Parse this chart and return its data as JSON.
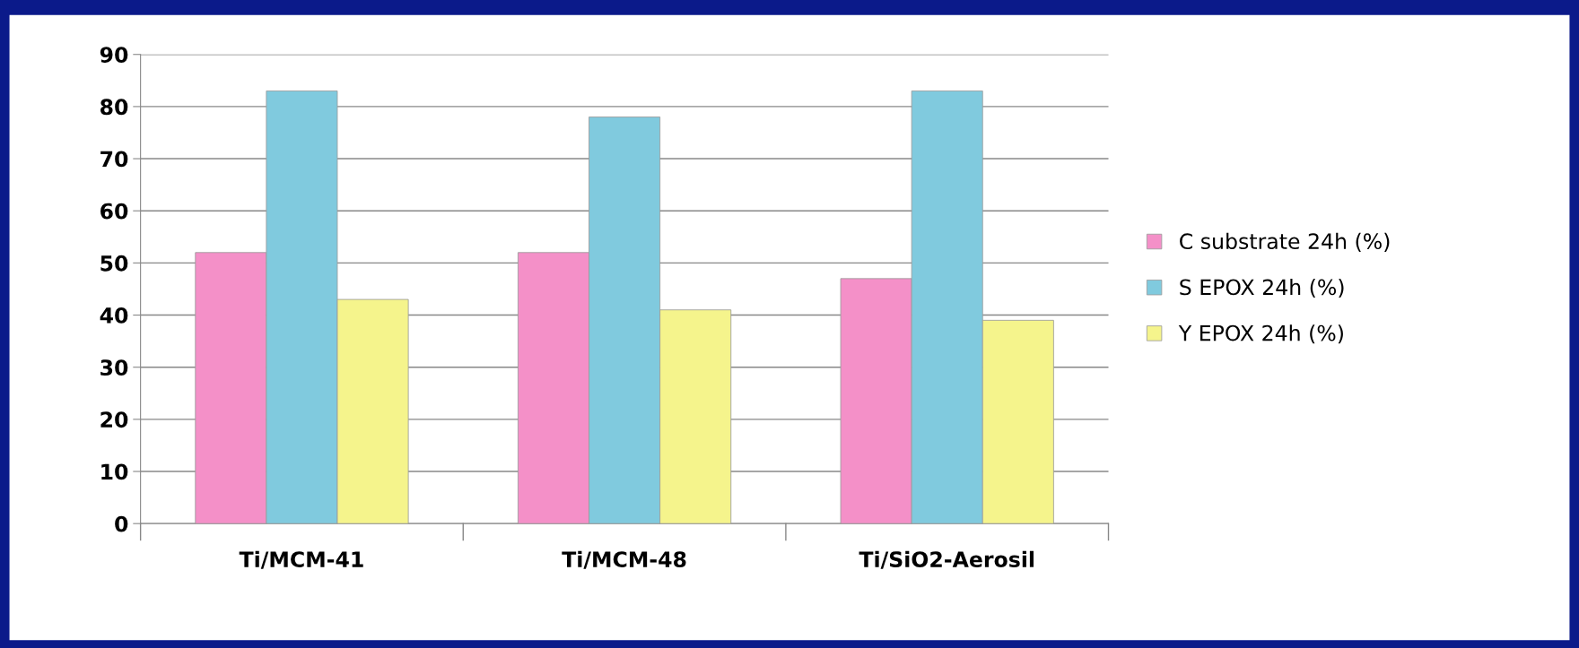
{
  "chart_data": {
    "type": "bar",
    "categories": [
      "Ti/MCM-41",
      "Ti/MCM-48",
      "Ti/SiO2-Aerosil"
    ],
    "series": [
      {
        "name": "C substrate 24h (%)",
        "color": "#f490c8",
        "values": [
          52,
          52,
          47
        ]
      },
      {
        "name": "S EPOX 24h (%)",
        "color": "#80cade",
        "values": [
          83,
          78,
          83
        ]
      },
      {
        "name": "Y EPOX 24h (%)",
        "color": "#f5f48c",
        "values": [
          43,
          41,
          39
        ]
      }
    ],
    "ylim": [
      0,
      90
    ],
    "yticks": [
      0,
      10,
      20,
      30,
      40,
      50,
      60,
      70,
      80,
      90
    ],
    "grid": "y",
    "legend": "right"
  }
}
